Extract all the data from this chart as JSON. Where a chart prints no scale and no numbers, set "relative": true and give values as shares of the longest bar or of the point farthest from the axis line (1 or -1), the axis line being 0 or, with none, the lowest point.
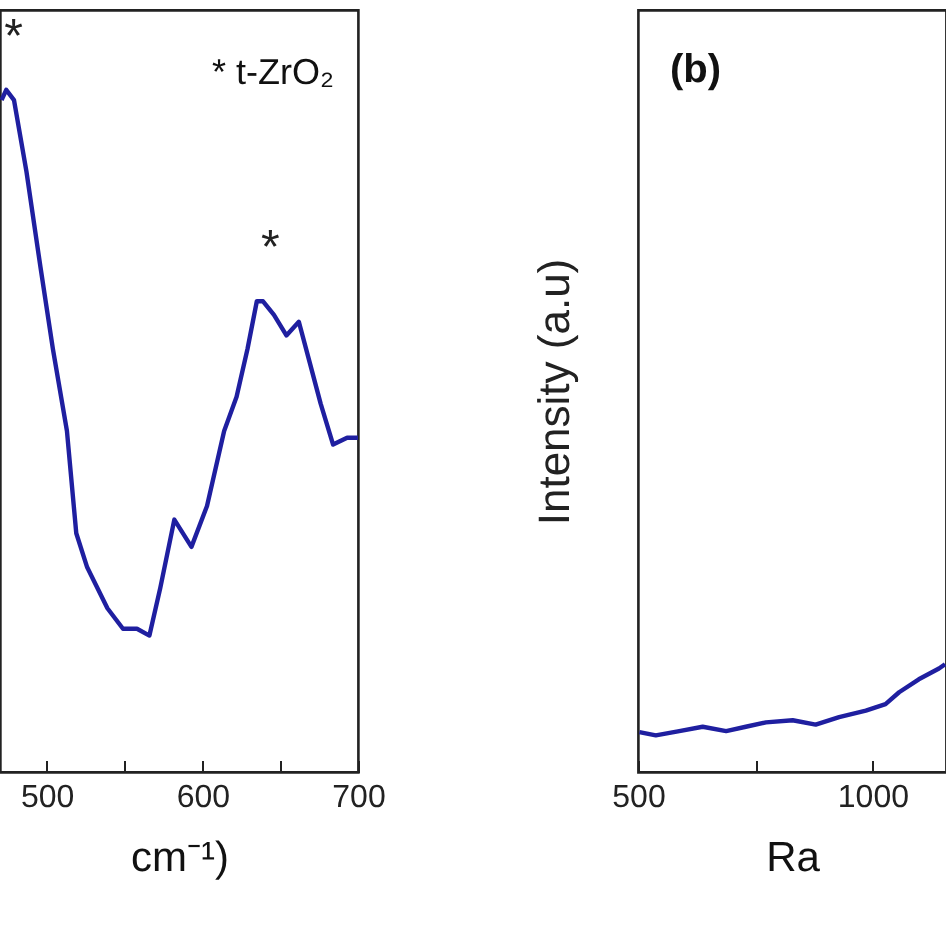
{
  "chart_data": [
    {
      "type": "line",
      "xlabel": "cm⁻¹)",
      "relative": true,
      "xlim": [
        470,
        700
      ],
      "xticks": [
        500,
        {
          "value": 550,
          "label": null
        },
        600,
        {
          "value": 650,
          "label": null
        },
        700
      ],
      "x": [
        471,
        474,
        479,
        487,
        496,
        504,
        513,
        519,
        526,
        539,
        549,
        558,
        566,
        573,
        582,
        593,
        603,
        614,
        622,
        629,
        635,
        639,
        646,
        654,
        662,
        669,
        676,
        684,
        693,
        700
      ],
      "series": [
        {
          "color": "#1f1fa0",
          "values": [
            0.985,
            1.0,
            0.985,
            0.88,
            0.74,
            0.62,
            0.5,
            0.35,
            0.3,
            0.24,
            0.21,
            0.21,
            0.2,
            0.27,
            0.37,
            0.33,
            0.39,
            0.5,
            0.55,
            0.62,
            0.69,
            0.69,
            0.67,
            0.64,
            0.66,
            0.6,
            0.54,
            0.48,
            0.49,
            0.49
          ]
        }
      ],
      "annotations": [
        {
          "text": "*",
          "x": 474,
          "y": 1.0
        },
        {
          "text": "*",
          "x": 639,
          "y": 0.69
        },
        "* t-ZrO₂"
      ]
    },
    {
      "type": "line",
      "xlabel": "Ra",
      "ylabel": "Intensity (a.u)",
      "relative": true,
      "xlim": [
        500,
        1157
      ],
      "xticks": [
        500,
        {
          "value": 750,
          "label": null
        },
        1000
      ],
      "x": [
        503,
        538,
        588,
        638,
        688,
        730,
        773,
        830,
        879,
        929,
        986,
        1028,
        1057,
        1099,
        1142,
        1155
      ],
      "series": [
        {
          "color": "#1f1fa0",
          "values": [
            0.37,
            0.34,
            0.38,
            0.42,
            0.38,
            0.42,
            0.46,
            0.48,
            0.44,
            0.51,
            0.57,
            0.63,
            0.74,
            0.86,
            0.96,
            1.0
          ]
        }
      ],
      "annotations": [
        "(b)"
      ]
    }
  ]
}
